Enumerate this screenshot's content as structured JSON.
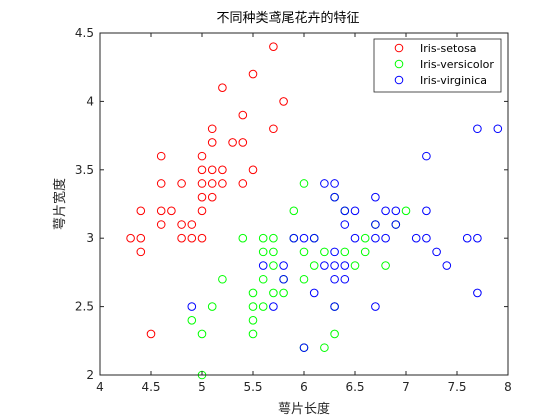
{
  "chart_data": {
    "type": "scatter",
    "title": "不同种类鸢尾花卉的特征",
    "xlabel": "萼片长度",
    "ylabel": "萼片宽度",
    "xlim": [
      4,
      8
    ],
    "ylim": [
      2,
      4.5
    ],
    "xticks": [
      "4",
      "4.5",
      "5",
      "5.5",
      "6",
      "6.5",
      "7",
      "7.5",
      "8"
    ],
    "yticks": [
      "2",
      "2.5",
      "3",
      "3.5",
      "4",
      "4.5"
    ],
    "grid": false,
    "legend_position": "top-right",
    "marker": "open-circle",
    "series": [
      {
        "name": "Iris-setosa",
        "color": "#ff0000",
        "points": [
          [
            4.3,
            3.0
          ],
          [
            4.4,
            2.9
          ],
          [
            4.4,
            3.0
          ],
          [
            4.4,
            3.2
          ],
          [
            4.5,
            2.3
          ],
          [
            4.6,
            3.1
          ],
          [
            4.6,
            3.2
          ],
          [
            4.6,
            3.4
          ],
          [
            4.6,
            3.6
          ],
          [
            4.7,
            3.2
          ],
          [
            4.8,
            3.0
          ],
          [
            4.8,
            3.1
          ],
          [
            4.8,
            3.4
          ],
          [
            4.9,
            3.0
          ],
          [
            4.9,
            3.1
          ],
          [
            5.0,
            3.0
          ],
          [
            5.0,
            3.2
          ],
          [
            5.0,
            3.3
          ],
          [
            5.0,
            3.4
          ],
          [
            5.0,
            3.5
          ],
          [
            5.0,
            3.6
          ],
          [
            5.1,
            3.3
          ],
          [
            5.1,
            3.4
          ],
          [
            5.1,
            3.5
          ],
          [
            5.1,
            3.7
          ],
          [
            5.1,
            3.8
          ],
          [
            5.2,
            3.4
          ],
          [
            5.2,
            3.5
          ],
          [
            5.2,
            4.1
          ],
          [
            5.3,
            3.7
          ],
          [
            5.4,
            3.4
          ],
          [
            5.4,
            3.7
          ],
          [
            5.4,
            3.9
          ],
          [
            5.5,
            3.5
          ],
          [
            5.5,
            4.2
          ],
          [
            5.7,
            3.8
          ],
          [
            5.7,
            4.4
          ],
          [
            5.8,
            4.0
          ]
        ]
      },
      {
        "name": "Iris-versicolor",
        "color": "#00ff00",
        "points": [
          [
            4.9,
            2.4
          ],
          [
            5.0,
            2.0
          ],
          [
            5.0,
            2.3
          ],
          [
            5.1,
            2.5
          ],
          [
            5.2,
            2.7
          ],
          [
            5.4,
            3.0
          ],
          [
            5.5,
            2.3
          ],
          [
            5.5,
            2.4
          ],
          [
            5.5,
            2.5
          ],
          [
            5.5,
            2.6
          ],
          [
            5.6,
            2.5
          ],
          [
            5.6,
            2.7
          ],
          [
            5.6,
            2.9
          ],
          [
            5.6,
            3.0
          ],
          [
            5.7,
            2.6
          ],
          [
            5.7,
            2.8
          ],
          [
            5.7,
            2.9
          ],
          [
            5.7,
            3.0
          ],
          [
            5.8,
            2.6
          ],
          [
            5.8,
            2.7
          ],
          [
            5.9,
            3.0
          ],
          [
            5.9,
            3.2
          ],
          [
            6.0,
            2.2
          ],
          [
            6.0,
            2.7
          ],
          [
            6.0,
            2.9
          ],
          [
            6.0,
            3.4
          ],
          [
            6.1,
            2.8
          ],
          [
            6.1,
            3.0
          ],
          [
            6.2,
            2.2
          ],
          [
            6.2,
            2.9
          ],
          [
            6.3,
            2.3
          ],
          [
            6.3,
            2.5
          ],
          [
            6.3,
            3.3
          ],
          [
            6.4,
            2.9
          ],
          [
            6.4,
            3.2
          ],
          [
            6.5,
            2.8
          ],
          [
            6.6,
            2.9
          ],
          [
            6.6,
            3.0
          ],
          [
            6.7,
            3.1
          ],
          [
            6.8,
            2.8
          ],
          [
            6.9,
            3.1
          ],
          [
            7.0,
            3.2
          ]
        ]
      },
      {
        "name": "Iris-virginica",
        "color": "#0000ff",
        "points": [
          [
            4.9,
            2.5
          ],
          [
            5.6,
            2.8
          ],
          [
            5.7,
            2.5
          ],
          [
            5.8,
            2.7
          ],
          [
            5.8,
            2.8
          ],
          [
            5.9,
            3.0
          ],
          [
            6.0,
            2.2
          ],
          [
            6.0,
            3.0
          ],
          [
            6.1,
            2.6
          ],
          [
            6.1,
            3.0
          ],
          [
            6.2,
            2.8
          ],
          [
            6.2,
            3.4
          ],
          [
            6.3,
            2.5
          ],
          [
            6.3,
            2.7
          ],
          [
            6.3,
            2.8
          ],
          [
            6.3,
            2.9
          ],
          [
            6.3,
            3.3
          ],
          [
            6.3,
            3.4
          ],
          [
            6.4,
            2.7
          ],
          [
            6.4,
            2.8
          ],
          [
            6.4,
            3.1
          ],
          [
            6.4,
            3.2
          ],
          [
            6.5,
            3.0
          ],
          [
            6.5,
            3.2
          ],
          [
            6.7,
            2.5
          ],
          [
            6.7,
            3.0
          ],
          [
            6.7,
            3.1
          ],
          [
            6.7,
            3.3
          ],
          [
            6.8,
            3.0
          ],
          [
            6.8,
            3.2
          ],
          [
            6.9,
            3.1
          ],
          [
            6.9,
            3.2
          ],
          [
            7.1,
            3.0
          ],
          [
            7.2,
            3.0
          ],
          [
            7.2,
            3.2
          ],
          [
            7.2,
            3.6
          ],
          [
            7.3,
            2.9
          ],
          [
            7.4,
            2.8
          ],
          [
            7.6,
            3.0
          ],
          [
            7.7,
            2.6
          ],
          [
            7.7,
            3.0
          ],
          [
            7.7,
            3.8
          ],
          [
            7.9,
            3.8
          ]
        ]
      }
    ]
  }
}
